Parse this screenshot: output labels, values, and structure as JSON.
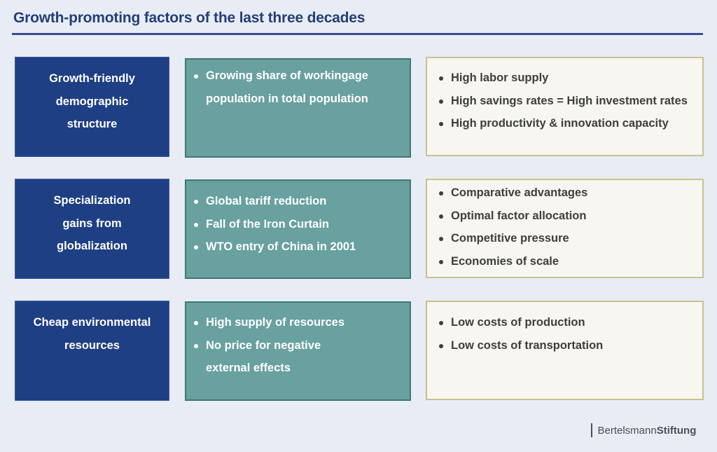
{
  "title": "Growth-promoting factors of the last three decades",
  "colors": {
    "category_bg": "#1f3f84",
    "cause_bg": "#69a0a0",
    "effect_bg": "#f7f6f0",
    "title": "#243e78"
  },
  "rows": [
    {
      "category": [
        "Growth-friendly",
        "demographic",
        "structure"
      ],
      "causes": [
        [
          "Growing share of workingage",
          "population in total population"
        ]
      ],
      "effects": [
        "High labor supply",
        "High savings rates = High investment rates",
        "High productivity & innovation capacity"
      ]
    },
    {
      "category": [
        "Specialization",
        "gains from",
        "globalization"
      ],
      "causes": [
        [
          "Global tariff reduction"
        ],
        [
          "Fall of the Iron Curtain"
        ],
        [
          "WTO entry of China in 2001"
        ]
      ],
      "effects": [
        "Comparative advantages",
        "Optimal factor allocation",
        "Competitive pressure",
        "Economies of scale"
      ]
    },
    {
      "category": [
        "Cheap environmental",
        "resources"
      ],
      "causes": [
        [
          "High supply of resources"
        ],
        [
          "No price for negative",
          "external effects"
        ]
      ],
      "effects": [
        "Low costs of production",
        "Low costs of transportation"
      ]
    }
  ],
  "logo": {
    "part1": "Bertelsmann",
    "part2": "Stiftung"
  }
}
